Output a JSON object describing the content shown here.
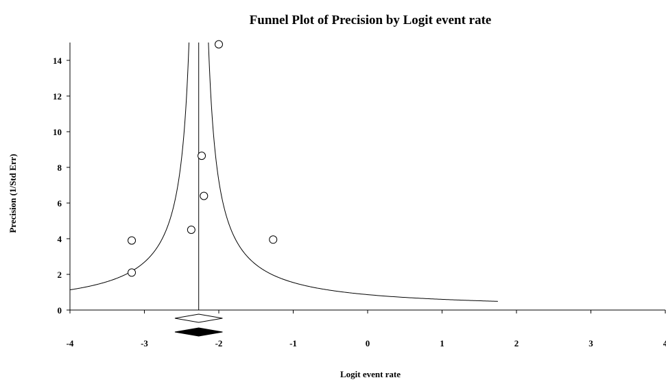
{
  "chart_data": {
    "type": "scatter",
    "title": "Funnel Plot of Precision by Logit event rate",
    "xlabel": "Logit event rate",
    "ylabel": "Precision (1/Std Err)",
    "xlim": [
      -4,
      4
    ],
    "ylim": [
      0,
      15
    ],
    "x_ticks": [
      -4,
      -3,
      -2,
      -1,
      0,
      1,
      2,
      3,
      4
    ],
    "y_ticks": [
      0,
      2,
      4,
      6,
      8,
      10,
      12,
      14
    ],
    "grid": false,
    "legend": "none",
    "pooled_estimate": -2.27,
    "funnel_x_range": [
      -4,
      1.75
    ],
    "series": [
      {
        "points": [
          {
            "x": -3.17,
            "y": 3.9
          },
          {
            "x": -3.17,
            "y": 2.1
          },
          {
            "x": -2.37,
            "y": 4.5
          },
          {
            "x": -2.23,
            "y": 8.65
          },
          {
            "x": -2.2,
            "y": 6.4
          },
          {
            "x": -2.0,
            "y": 14.9
          },
          {
            "x": -1.27,
            "y": 3.95
          }
        ]
      }
    ],
    "summary_diamonds": [
      {
        "center": -2.27,
        "ci": [
          -2.59,
          -1.95
        ],
        "fill": "#ffffff"
      },
      {
        "center": -2.27,
        "ci": [
          -2.59,
          -1.95
        ],
        "fill": "#000000"
      }
    ]
  }
}
